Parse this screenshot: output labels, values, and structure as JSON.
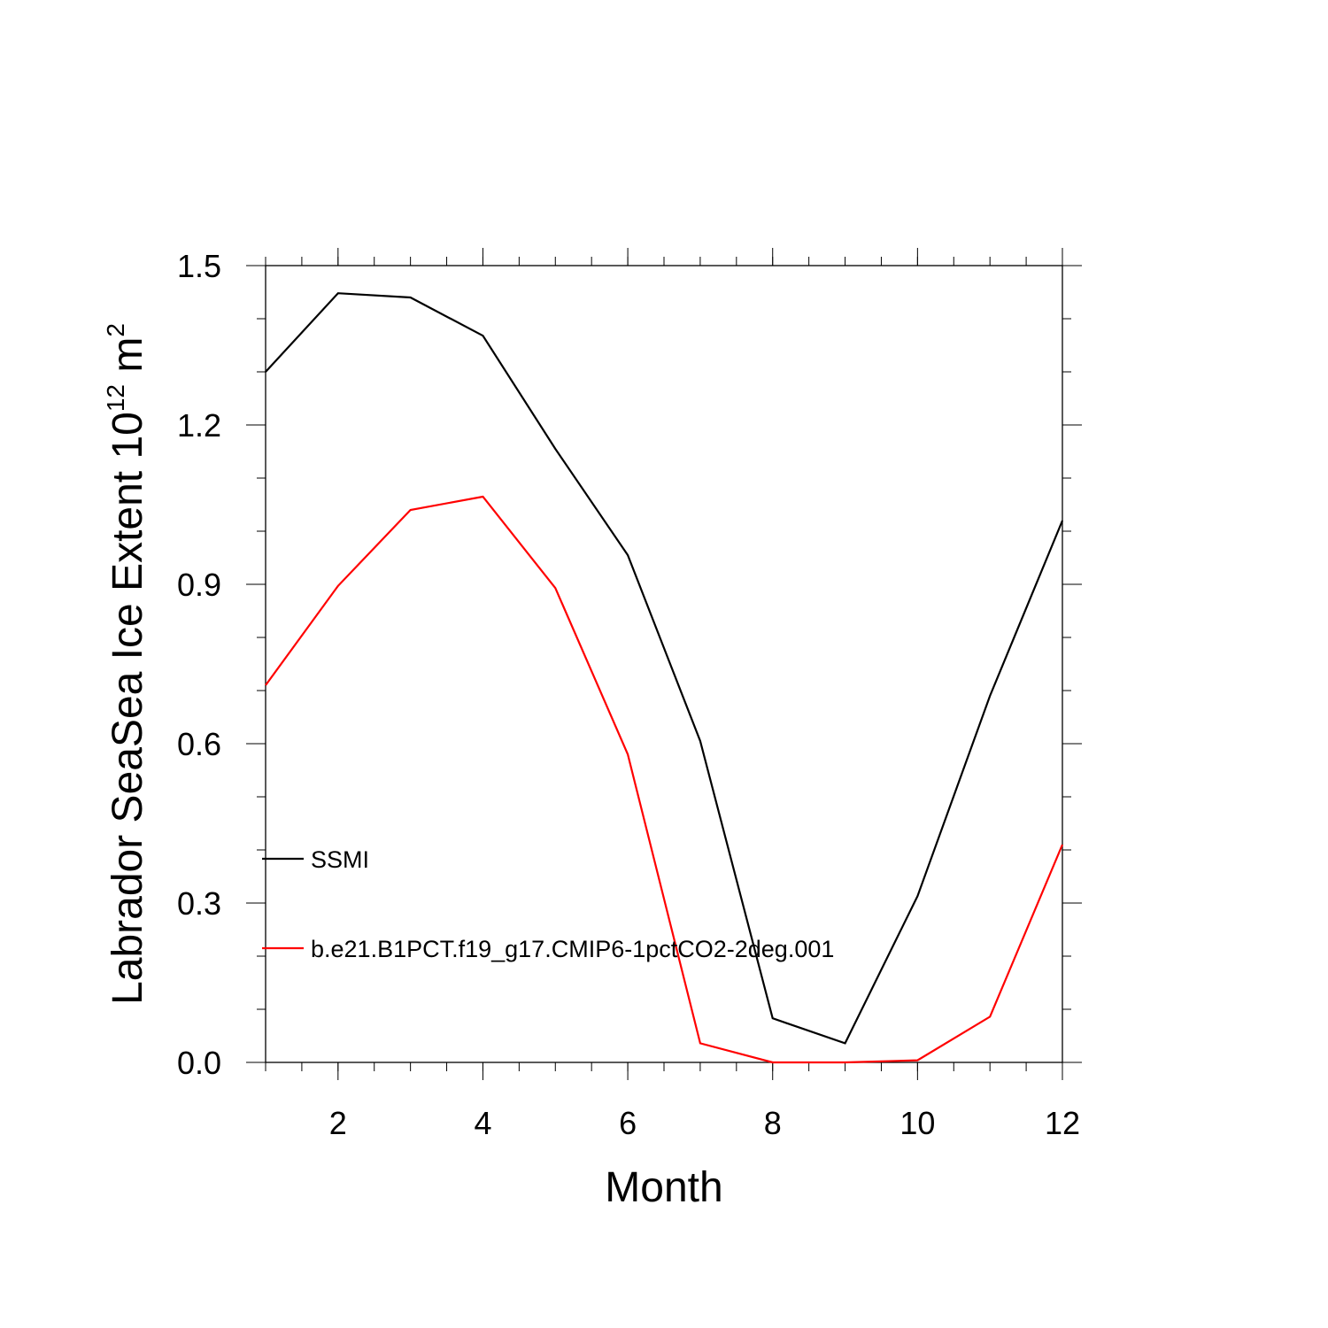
{
  "chart_data": {
    "type": "line",
    "xlabel": "Month",
    "ylabel_main": "Labrador SeaSea Ice Extent 10",
    "ylabel_sup": "12",
    "ylabel_unit": " m",
    "ylabel_unit_sup": "2",
    "xlim": [
      1,
      12
    ],
    "ylim": [
      0.0,
      1.5
    ],
    "x_ticks": [
      2,
      4,
      6,
      8,
      10,
      12
    ],
    "x_tick_labels": [
      "2",
      "4",
      "6",
      "8",
      "10",
      "12"
    ],
    "y_ticks": [
      0.0,
      0.3,
      0.6,
      0.9,
      1.2,
      1.5
    ],
    "y_tick_labels": [
      "0.0",
      "0.3",
      "0.6",
      "0.9",
      "1.2",
      "1.5"
    ],
    "x": [
      1,
      2,
      3,
      4,
      5,
      6,
      7,
      8,
      9,
      10,
      11,
      12
    ],
    "series": [
      {
        "name": "SSMI",
        "color": "#000000",
        "values": [
          1.3,
          1.448,
          1.44,
          1.368,
          1.155,
          0.955,
          0.605,
          0.083,
          0.036,
          0.313,
          0.69,
          1.02
        ]
      },
      {
        "name": "b.e21.B1PCT.f19_g17.CMIP6-1pctCO2-2deg.001",
        "color": "#ff0000",
        "values": [
          0.71,
          0.897,
          1.04,
          1.065,
          0.893,
          0.58,
          0.036,
          0.0,
          0.0,
          0.004,
          0.086,
          0.41
        ]
      }
    ],
    "grid": false,
    "legend_position": "inside-lower-left"
  }
}
